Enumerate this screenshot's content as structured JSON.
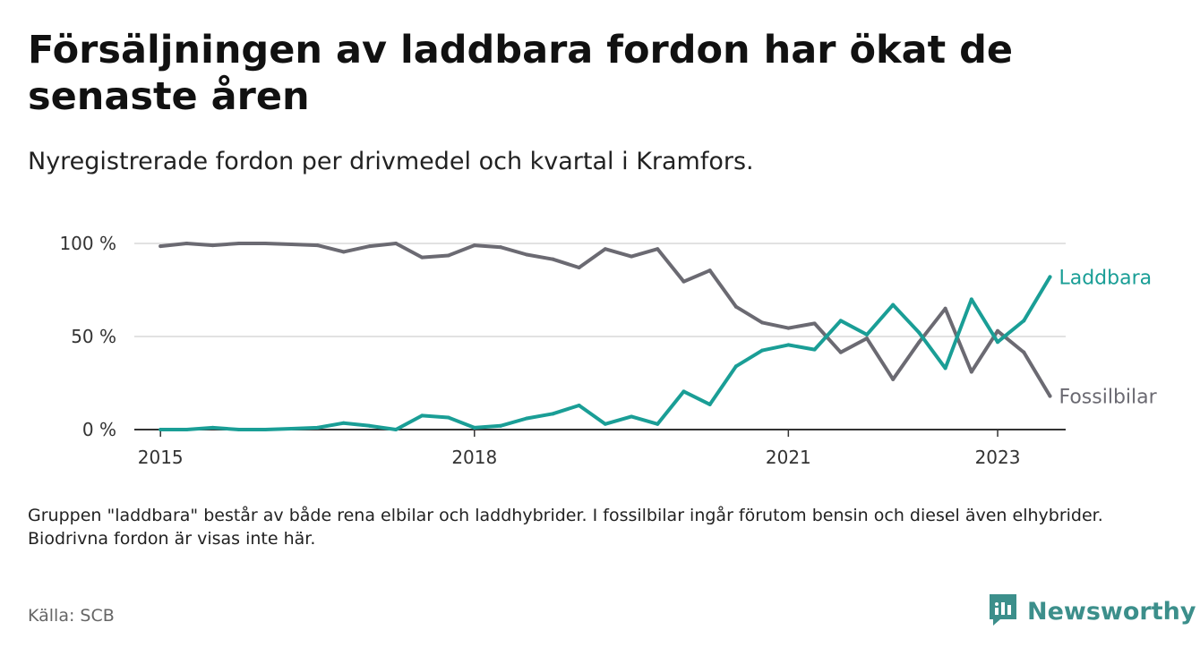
{
  "title": "Försäljningen av laddbara fordon har ökat de senaste åren",
  "subtitle": "Nyregistrerade fordon per drivmedel och kvartal i Kramfors.",
  "note": "Gruppen \"laddbara\" består av både rena elbilar och laddhybrider. I fossilbilar ingår förutom bensin och diesel även elhybrider. Biodrivna fordon är visas inte här.",
  "source": "Källa: SCB",
  "brand": {
    "name": "Newsworthy",
    "icon": "newsworthy-logo-icon"
  },
  "colors": {
    "laddbara": "#1a9e96",
    "fossil": "#6b6a72",
    "grid": "#d9d9d9",
    "axis": "#333333"
  },
  "chart_data": {
    "type": "line",
    "title": "Försäljningen av laddbara fordon har ökat de senaste åren",
    "xlabel": "",
    "ylabel": "",
    "ylim": [
      0,
      100
    ],
    "y_ticks": [
      0,
      50,
      100
    ],
    "y_tick_labels": [
      "0 %",
      "50 %",
      "100 %"
    ],
    "x_ticks": [
      2015,
      2018,
      2021,
      2023
    ],
    "x_tick_labels": [
      "2015",
      "2018",
      "2021",
      "2023"
    ],
    "xlim": [
      2014.75,
      2023.65
    ],
    "grid": true,
    "x": [
      2015.0,
      2015.25,
      2015.5,
      2015.75,
      2016.0,
      2016.25,
      2016.5,
      2016.75,
      2017.0,
      2017.25,
      2017.5,
      2017.75,
      2018.0,
      2018.25,
      2018.5,
      2018.75,
      2019.0,
      2019.25,
      2019.5,
      2019.75,
      2020.0,
      2020.25,
      2020.5,
      2020.75,
      2021.0,
      2021.25,
      2021.5,
      2021.75,
      2022.0,
      2022.25,
      2022.5,
      2022.75,
      2023.0,
      2023.25,
      2023.5
    ],
    "series": [
      {
        "name": "Laddbara",
        "values": [
          0,
          0,
          1,
          0,
          0,
          0.5,
          1,
          3.5,
          2,
          0,
          7.5,
          6.5,
          1,
          2,
          6,
          8.5,
          13,
          3,
          7,
          3,
          20.5,
          13.5,
          34,
          42.5,
          45.5,
          43,
          58.5,
          51,
          67,
          52,
          33,
          70,
          47,
          58.5,
          82
        ]
      },
      {
        "name": "Fossilbilar",
        "values": [
          98.5,
          100,
          99,
          100,
          100,
          99.5,
          99,
          95.5,
          98.5,
          100,
          92.5,
          93.5,
          99,
          98,
          94,
          91.5,
          87,
          97,
          93,
          97,
          79.5,
          85.5,
          66,
          57.5,
          54.5,
          57,
          41.5,
          49,
          27,
          47,
          65,
          31,
          53,
          41.5,
          18
        ]
      }
    ],
    "series_labels": [
      "Laddbara",
      "Fossilbilar"
    ]
  }
}
